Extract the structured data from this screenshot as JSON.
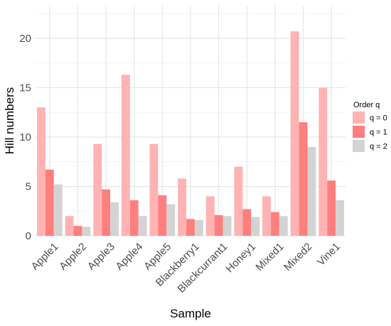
{
  "chart_data": {
    "type": "bar",
    "xlabel": "Sample",
    "ylabel": "Hill numbers",
    "categories": [
      "Apple1",
      "Apple2",
      "Apple3",
      "Apple4",
      "Apple5",
      "Blackberry1",
      "Blackcurrant1",
      "Honey1",
      "Mixed1",
      "Mixed2",
      "Vine1"
    ],
    "series": [
      {
        "name": "q = 0",
        "color": "#ffb3b3",
        "values": [
          13.0,
          2.0,
          9.3,
          16.3,
          9.3,
          5.8,
          4.0,
          7.0,
          4.0,
          20.7,
          15.0
        ]
      },
      {
        "name": "q = 1",
        "color": "#ff7f7f",
        "values": [
          6.7,
          1.0,
          4.7,
          3.6,
          4.1,
          1.7,
          2.1,
          2.7,
          2.4,
          11.5,
          5.6
        ]
      },
      {
        "name": "q = 2",
        "color": "#d3d3d3",
        "values": [
          5.2,
          0.9,
          3.4,
          2.0,
          3.2,
          1.6,
          2.0,
          1.9,
          2.0,
          9.0,
          3.6
        ]
      }
    ],
    "ylim": [
      0,
      23.3
    ],
    "yticks": [
      0,
      5,
      10,
      15,
      20
    ],
    "legend": {
      "title": "Order q",
      "position": "right"
    },
    "grid": true
  }
}
